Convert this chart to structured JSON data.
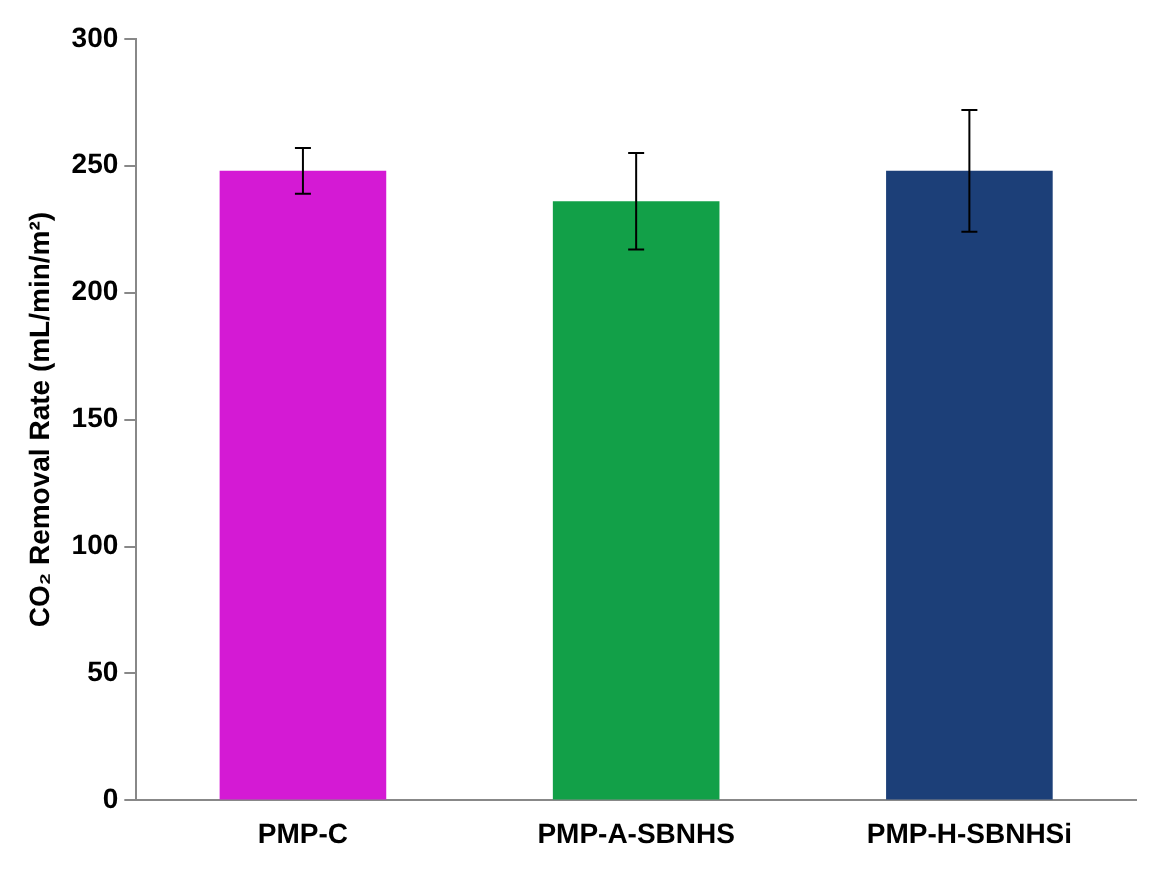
{
  "chart_data": {
    "type": "bar",
    "ylabel": "CO₂ Removal Rate (mL/min/m²)",
    "categories": [
      "PMP-C",
      "PMP-A-SBNHS",
      "PMP-H-SBNHSi"
    ],
    "values": [
      248,
      236,
      248
    ],
    "colors": [
      "#d41ad4",
      "#12a048",
      "#1c3f78"
    ],
    "errors": [
      [
        239,
        257
      ],
      [
        217,
        255
      ],
      [
        224,
        272
      ]
    ],
    "ylim": [
      0,
      300
    ],
    "yticks": [
      0,
      50,
      100,
      150,
      200,
      250,
      300
    ],
    "grid": false,
    "legend": false
  }
}
